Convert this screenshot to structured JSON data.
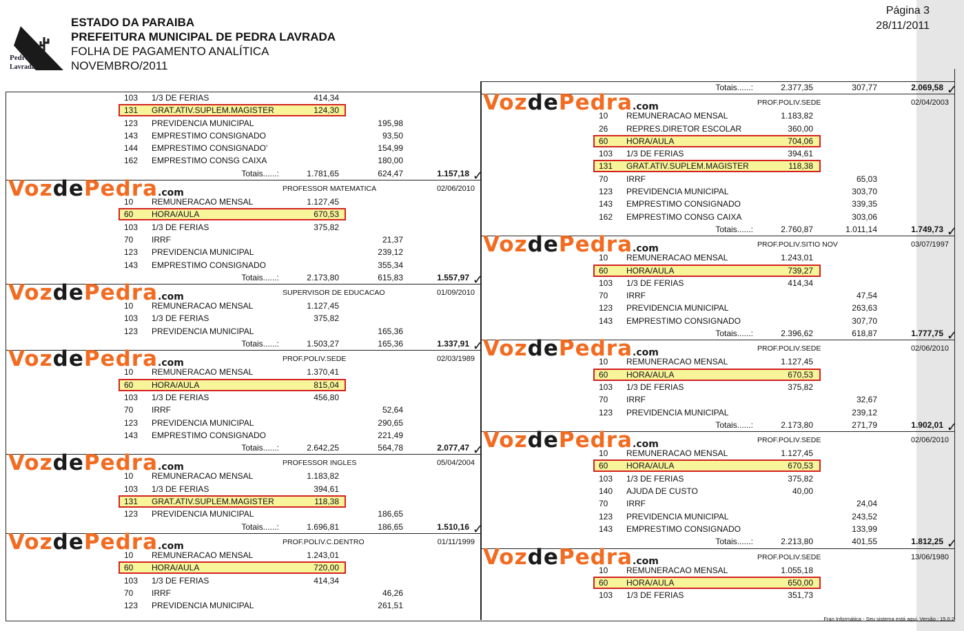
{
  "header": {
    "line1": "ESTADO DA PARAIBA",
    "line2": "PREFEITURA MUNICIPAL DE PEDRA LAVRADA",
    "line3": "FOLHA DE PAGAMENTO ANALÍTICA",
    "line4": "NOVEMBRO/2011",
    "crest_text": [
      "Pedra",
      "Lavrada"
    ],
    "page_label": "Página 3",
    "date": "28/11/2011"
  },
  "watermark": {
    "part1": "Voz",
    "part2": "de",
    "part3": "Pedra",
    "part4": ".com",
    "orange": "#f26b21"
  },
  "highlight": {
    "fill": "#f8f49a",
    "border": "#d42020"
  },
  "totals_label": "Totais......:",
  "check_mark": "✓",
  "left_blocks": [
    {
      "role": "",
      "date": "",
      "rows": [
        [
          "103",
          "1/3 DE FERIAS",
          "414,34",
          "",
          false
        ],
        [
          "131",
          "GRAT.ATIV.SUPLEM.MAGISTER",
          "124,30",
          "",
          true
        ],
        [
          "123",
          "PREVIDENCIA MUNICIPAL",
          "",
          "195,98",
          false
        ],
        [
          "143",
          "EMPRESTIMO CONSIGNADO",
          "",
          "93,50",
          false
        ],
        [
          "144",
          "EMPRESTIMO CONSIGNADO'",
          "",
          "154,99",
          false
        ],
        [
          "162",
          "EMPRESTIMO CONSG CAIXA",
          "",
          "180,00",
          false
        ]
      ],
      "totals": [
        "1.781,65",
        "624,47",
        "1.157,18"
      ]
    },
    {
      "role": "PROFESSOR MATEMATICA",
      "date": "02/06/2010",
      "rows": [
        [
          "10",
          "REMUNERACAO MENSAL",
          "1.127,45",
          "",
          false
        ],
        [
          "60",
          "HORA/AULA",
          "670,53",
          "",
          true
        ],
        [
          "103",
          "1/3 DE FERIAS",
          "375,82",
          "",
          false
        ],
        [
          "70",
          "IRRF",
          "",
          "21,37",
          false
        ],
        [
          "123",
          "PREVIDENCIA MUNICIPAL",
          "",
          "239,12",
          false
        ],
        [
          "143",
          "EMPRESTIMO CONSIGNADO",
          "",
          "355,34",
          false
        ]
      ],
      "totals": [
        "2.173,80",
        "615,83",
        "1.557,97"
      ]
    },
    {
      "role": "SUPERVISOR DE EDUCACAO",
      "date": "01/09/2010",
      "rows": [
        [
          "10",
          "REMUNERACAO MENSAL",
          "1.127,45",
          "",
          false
        ],
        [
          "103",
          "1/3 DE FERIAS",
          "375,82",
          "",
          false
        ],
        [
          "123",
          "PREVIDENCIA MUNICIPAL",
          "",
          "165,36",
          false
        ]
      ],
      "totals": [
        "1.503,27",
        "165,36",
        "1.337,91"
      ]
    },
    {
      "role": "PROF.POLIV.SEDE",
      "date": "02/03/1989",
      "rows": [
        [
          "10",
          "REMUNERACAO MENSAL",
          "1.370,41",
          "",
          false
        ],
        [
          "60",
          "HORA/AULA",
          "815,04",
          "",
          true
        ],
        [
          "103",
          "1/3 DE FERIAS",
          "456,80",
          "",
          false
        ],
        [
          "70",
          "IRRF",
          "",
          "52,64",
          false
        ],
        [
          "123",
          "PREVIDENCIA MUNICIPAL",
          "",
          "290,65",
          false
        ],
        [
          "143",
          "EMPRESTIMO CONSIGNADO",
          "",
          "221,49",
          false
        ]
      ],
      "totals": [
        "2.642,25",
        "564,78",
        "2.077,47"
      ]
    },
    {
      "role": "PROFESSOR INGLES",
      "date": "05/04/2004",
      "rows": [
        [
          "10",
          "REMUNERACAO MENSAL",
          "1.183,82",
          "",
          false
        ],
        [
          "103",
          "1/3 DE FERIAS",
          "394,61",
          "",
          false
        ],
        [
          "131",
          "GRAT.ATIV.SUPLEM.MAGISTER",
          "118,38",
          "",
          true
        ],
        [
          "123",
          "PREVIDENCIA MUNICIPAL",
          "",
          "186,65",
          false
        ]
      ],
      "totals": [
        "1.696,81",
        "186,65",
        "1.510,16"
      ]
    },
    {
      "role": "PROF.POLIV.C.DENTRO",
      "date": "01/11/1999",
      "rows": [
        [
          "10",
          "REMUNERACAO MENSAL",
          "1.243,01",
          "",
          false
        ],
        [
          "60",
          "HORA/AULA",
          "720,00",
          "",
          true
        ],
        [
          "103",
          "1/3 DE FERIAS",
          "414,34",
          "",
          false
        ],
        [
          "70",
          "IRRF",
          "",
          "46,26",
          false
        ],
        [
          "123",
          "PREVIDENCIA MUNICIPAL",
          "",
          "261,51",
          false
        ]
      ],
      "totals": null
    }
  ],
  "right_blocks": [
    {
      "role": null,
      "date": null,
      "rows": [],
      "totals": [
        "2.377,35",
        "307,77",
        "2.069,58"
      ]
    },
    {
      "role": "PROF.POLIV.SEDE",
      "date": "02/04/2003",
      "rows": [
        [
          "10",
          "REMUNERACAO MENSAL",
          "1.183,82",
          "",
          false
        ],
        [
          "26",
          "REPRES.DIRETOR ESCOLAR",
          "360,00",
          "",
          false
        ],
        [
          "60",
          "HORA/AULA",
          "704,06",
          "",
          true
        ],
        [
          "103",
          "1/3 DE FERIAS",
          "394,61",
          "",
          false
        ],
        [
          "131",
          "GRAT.ATIV.SUPLEM.MAGISTER",
          "118,38",
          "",
          true
        ],
        [
          "70",
          "IRRF",
          "",
          "65,03",
          false
        ],
        [
          "123",
          "PREVIDENCIA MUNICIPAL",
          "",
          "303,70",
          false
        ],
        [
          "143",
          "EMPRESTIMO CONSIGNADO",
          "",
          "339,35",
          false
        ],
        [
          "162",
          "EMPRESTIMO CONSG CAIXA",
          "",
          "303,06",
          false
        ]
      ],
      "totals": [
        "2.760,87",
        "1.011,14",
        "1.749,73"
      ]
    },
    {
      "role": "PROF.POLIV.SITIO NOV",
      "date": "03/07/1997",
      "rows": [
        [
          "10",
          "REMUNERACAO MENSAL",
          "1.243,01",
          "",
          false
        ],
        [
          "60",
          "HORA/AULA",
          "739,27",
          "",
          true
        ],
        [
          "103",
          "1/3 DE FERIAS",
          "414,34",
          "",
          false
        ],
        [
          "70",
          "IRRF",
          "",
          "47,54",
          false
        ],
        [
          "123",
          "PREVIDENCIA MUNICIPAL",
          "",
          "263,63",
          false
        ],
        [
          "143",
          "EMPRESTIMO CONSIGNADO",
          "",
          "307,70",
          false
        ]
      ],
      "totals": [
        "2.396,62",
        "618,87",
        "1.777,75"
      ]
    },
    {
      "role": "PROF.POLIV.SEDE",
      "date": "02/06/2010",
      "rows": [
        [
          "10",
          "REMUNERACAO MENSAL",
          "1.127,45",
          "",
          false
        ],
        [
          "60",
          "HORA/AULA",
          "670,53",
          "",
          true
        ],
        [
          "103",
          "1/3 DE FERIAS",
          "375,82",
          "",
          false
        ],
        [
          "70",
          "IRRF",
          "",
          "32,67",
          false
        ],
        [
          "123",
          "PREVIDENCIA MUNICIPAL",
          "",
          "239,12",
          false
        ]
      ],
      "totals": [
        "2.173,80",
        "271,79",
        "1.902,01"
      ]
    },
    {
      "role": "PROF.POLIV.SEDE",
      "date": "02/06/2010",
      "rows": [
        [
          "10",
          "REMUNERACAO MENSAL",
          "1.127,45",
          "",
          false
        ],
        [
          "60",
          "HORA/AULA",
          "670,53",
          "",
          true
        ],
        [
          "103",
          "1/3 DE FERIAS",
          "375,82",
          "",
          false
        ],
        [
          "140",
          "AJUDA DE CUSTO",
          "40,00",
          "",
          false
        ],
        [
          "70",
          "IRRF",
          "",
          "24,04",
          false
        ],
        [
          "123",
          "PREVIDENCIA MUNICIPAL",
          "",
          "243,52",
          false
        ],
        [
          "143",
          "EMPRESTIMO CONSIGNADO",
          "",
          "133,99",
          false
        ]
      ],
      "totals": [
        "2.213,80",
        "401,55",
        "1.812,25"
      ]
    },
    {
      "role": "PROF.POLIV.SEDE",
      "date": "13/06/1980",
      "rows": [
        [
          "10",
          "REMUNERACAO MENSAL",
          "1.055,18",
          "",
          false
        ],
        [
          "60",
          "HORA/AULA",
          "650,00",
          "",
          true
        ],
        [
          "103",
          "1/3 DE FERIAS",
          "351,73",
          "",
          false
        ]
      ],
      "totals": null
    }
  ],
  "footer": "Fran Informática - Seu sistema está aqui. Versão.: 15.0.2"
}
